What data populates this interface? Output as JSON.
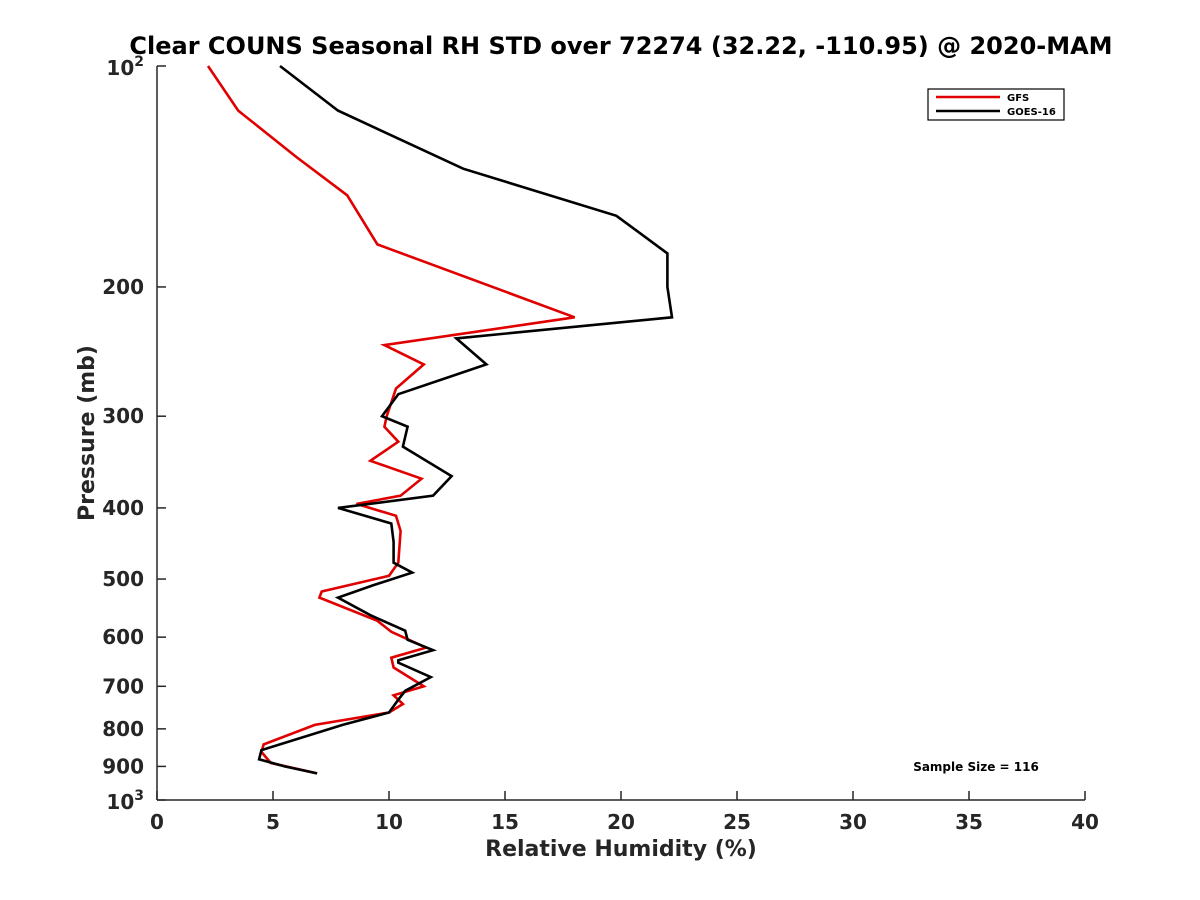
{
  "chart_data": {
    "type": "line",
    "title": "Clear COUNS Seasonal RH STD over 72274 (32.22, -110.95) @ 2020-MAM",
    "xlabel": "Relative Humidity (%)",
    "ylabel": "Pressure (mb)",
    "xlim": [
      0,
      40
    ],
    "ylim": [
      100,
      1000
    ],
    "yscale": "log",
    "y_reversed": true,
    "x_ticks": [
      "0",
      "5",
      "10",
      "15",
      "20",
      "25",
      "30",
      "35",
      "40"
    ],
    "y_ticks": [
      {
        "value": 100,
        "base": "10",
        "exp": "2"
      },
      {
        "value": 200,
        "label": "200"
      },
      {
        "value": 300,
        "label": "300"
      },
      {
        "value": 400,
        "label": "400"
      },
      {
        "value": 500,
        "label": "500"
      },
      {
        "value": 600,
        "label": "600"
      },
      {
        "value": 700,
        "label": "700"
      },
      {
        "value": 800,
        "label": "800"
      },
      {
        "value": 900,
        "label": "900"
      },
      {
        "value": 1000,
        "base": "10",
        "exp": "3"
      }
    ],
    "legend_position": "top-right",
    "annotation": "Sample Size = 116",
    "series": [
      {
        "name": "GFS",
        "color": "#e00000",
        "x": [
          2.2,
          3.5,
          6.0,
          8.2,
          9.5,
          18.0,
          9.8,
          11.5,
          10.3,
          9.9,
          9.8,
          10.4,
          9.2,
          11.4,
          10.5,
          8.6,
          10.3,
          10.5,
          10.4,
          10.0,
          7.1,
          7.0,
          9.5,
          10.1,
          11.6,
          10.1,
          10.2,
          11.5,
          10.2,
          10.6,
          10.0,
          6.8,
          4.6,
          4.5,
          4.9,
          6.9
        ],
        "y": [
          100,
          115,
          133,
          150,
          175,
          220,
          240,
          255,
          275,
          300,
          310,
          325,
          345,
          365,
          385,
          395,
          410,
          430,
          475,
          495,
          520,
          530,
          570,
          590,
          620,
          640,
          660,
          700,
          720,
          740,
          760,
          790,
          840,
          860,
          890,
          920
        ]
      },
      {
        "name": "GOES-16",
        "color": "#000000",
        "x": [
          5.3,
          7.8,
          13.2,
          19.8,
          22.0,
          22.0,
          22.2,
          12.9,
          14.2,
          10.4,
          9.7,
          10.8,
          10.6,
          12.7,
          11.9,
          7.8,
          10.1,
          10.2,
          10.2,
          11.0,
          9.3,
          7.8,
          9.2,
          10.7,
          10.8,
          11.9,
          10.4,
          10.4,
          11.8,
          10.7,
          10.4,
          10.0,
          8.0,
          4.5,
          4.4,
          5.5,
          6.9
        ],
        "y": [
          100,
          115,
          138,
          160,
          180,
          200,
          220,
          235,
          255,
          280,
          300,
          310,
          330,
          362,
          385,
          400,
          420,
          445,
          475,
          490,
          510,
          530,
          560,
          588,
          605,
          625,
          645,
          650,
          680,
          710,
          730,
          760,
          790,
          855,
          880,
          900,
          920
        ]
      }
    ]
  }
}
